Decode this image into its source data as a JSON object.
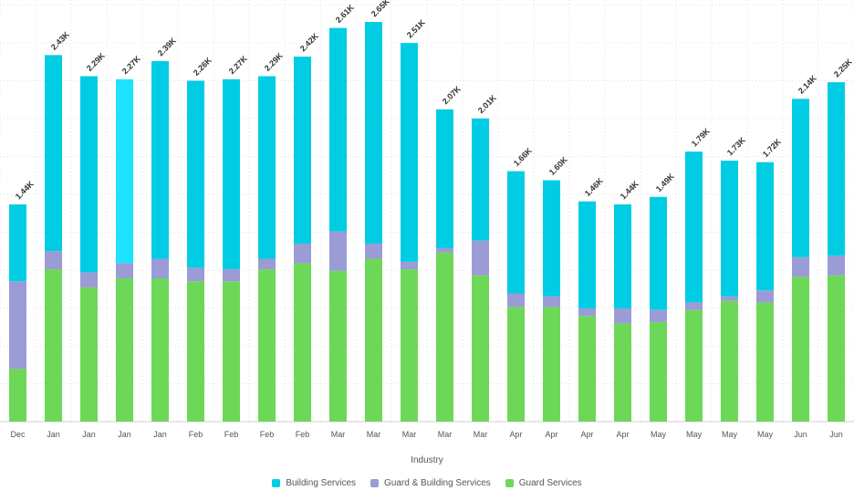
{
  "chart_data": {
    "type": "bar",
    "stacked": true,
    "title": "",
    "xlabel": "Industry",
    "ylabel": "",
    "ylim": [
      0,
      2650
    ],
    "grid": true,
    "legend_position": "bottom",
    "categories": [
      "Dec",
      "Jan",
      "Jan",
      "Jan",
      "Jan",
      "Feb",
      "Feb",
      "Feb",
      "Feb",
      "Mar",
      "Mar",
      "Mar",
      "Mar",
      "Mar",
      "Apr",
      "Apr",
      "Apr",
      "Apr",
      "May",
      "May",
      "May",
      "May",
      "Jun",
      "Jun"
    ],
    "totals_labels": [
      "1.44K",
      "2.43K",
      "2.29K",
      "2.27K",
      "2.39K",
      "2.26K",
      "2.27K",
      "2.29K",
      "2.42K",
      "2.61K",
      "2.65K",
      "2.51K",
      "2.07K",
      "2.01K",
      "1.66K",
      "1.60K",
      "1.46K",
      "1.44K",
      "1.49K",
      "1.79K",
      "1.73K",
      "1.72K",
      "2.14K",
      "2.25K"
    ],
    "highlighted_index": 3,
    "series": [
      {
        "name": "Guard Services",
        "color": "#6dd858",
        "values": [
          350,
          1010,
          890,
          950,
          950,
          930,
          930,
          1010,
          1050,
          1000,
          1080,
          1010,
          1120,
          970,
          760,
          760,
          700,
          650,
          660,
          740,
          800,
          790,
          960,
          970
        ]
      },
      {
        "name": "Guard & Building Services",
        "color": "#9b9bd6",
        "values": [
          580,
          120,
          100,
          100,
          130,
          90,
          80,
          70,
          130,
          260,
          100,
          50,
          30,
          230,
          90,
          70,
          50,
          100,
          80,
          50,
          30,
          80,
          130,
          130
        ]
      },
      {
        "name": "Building Services",
        "color": "#00cde3",
        "values": [
          510,
          1300,
          1300,
          1220,
          1310,
          1240,
          1260,
          1210,
          1240,
          1350,
          1470,
          1450,
          920,
          810,
          810,
          770,
          710,
          690,
          750,
          1000,
          900,
          850,
          1050,
          1150
        ]
      }
    ],
    "highlight_color": "#1ee3ff"
  }
}
